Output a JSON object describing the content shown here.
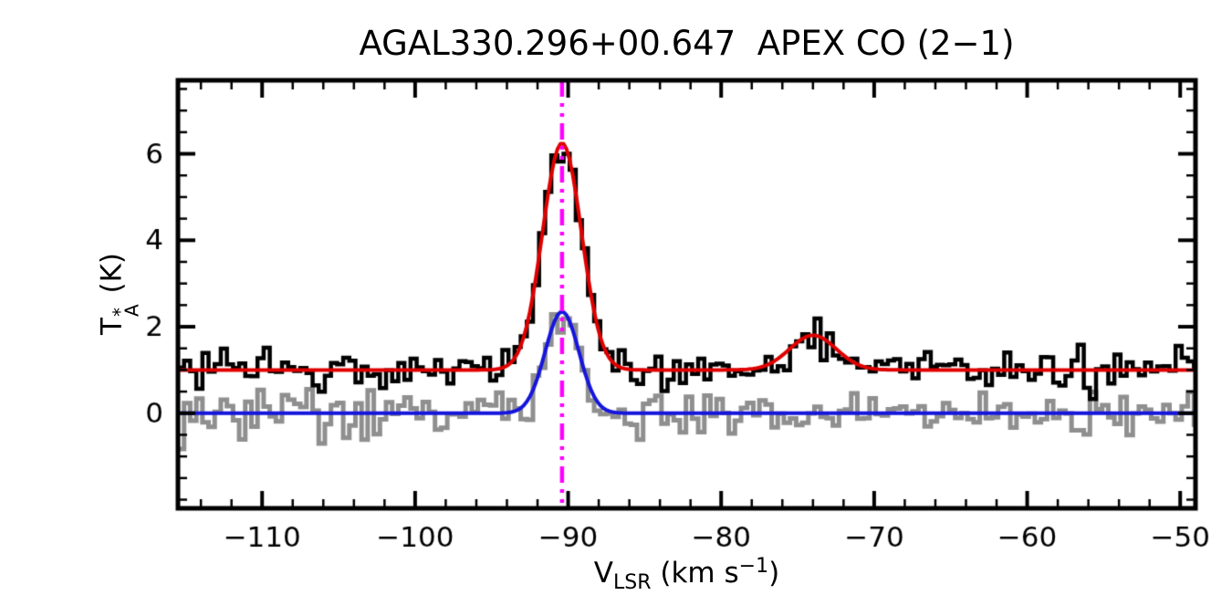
{
  "chart_data": {
    "type": "line",
    "title": "AGAL330.296+00.647  APEX CO (2−1)",
    "xlabel": {
      "base": "V",
      "sub": "LSR",
      "unit_pre": " (km s",
      "sup": "−1",
      "unit_post": ")"
    },
    "ylabel": {
      "base": "T",
      "sup": "*",
      "sub": "A",
      "unit": " (K)"
    },
    "xlim": [
      -115.5,
      -49.0
    ],
    "ylim": [
      -2.2,
      7.7
    ],
    "x_major_ticks": [
      -110,
      -100,
      -90,
      -80,
      -70,
      -60,
      -50
    ],
    "x_minor_step": 2,
    "y_major_ticks": [
      0,
      2,
      4,
      6
    ],
    "y_minor_step": 0.5,
    "grid": false,
    "legend": "none",
    "channel_width": 0.4,
    "series": [
      {
        "name": "observed-co-spectrum",
        "style": "histogram",
        "color": "#000000",
        "baseline": 1.0,
        "noise_rms": 0.22,
        "seed": 20240117,
        "components": [
          {
            "center": -90.4,
            "amplitude": 5.25,
            "fwhm": 3.0
          },
          {
            "center": -74.0,
            "amplitude": 0.8,
            "fwhm": 3.6
          }
        ]
      },
      {
        "name": "reference-offset-spectrum",
        "style": "histogram",
        "color": "#8f8f8f",
        "baseline": 0.0,
        "noise_rms": 0.27,
        "seed": 987654,
        "components": [
          {
            "center": -90.4,
            "amplitude": 2.4,
            "fwhm": 2.6
          }
        ]
      },
      {
        "name": "gaussian-fit-observed",
        "style": "smooth",
        "color": "#e00000",
        "baseline": 1.0,
        "noise_rms": 0,
        "seed": 0,
        "components": [
          {
            "center": -90.4,
            "amplitude": 5.25,
            "fwhm": 3.0
          },
          {
            "center": -74.0,
            "amplitude": 0.8,
            "fwhm": 3.6
          }
        ]
      },
      {
        "name": "gaussian-fit-reference",
        "style": "smooth",
        "color": "#1515dd",
        "baseline": 0.0,
        "noise_rms": 0,
        "seed": 0,
        "components": [
          {
            "center": -90.4,
            "amplitude": 2.35,
            "fwhm": 2.6
          }
        ]
      }
    ],
    "marker_line": {
      "x": -90.4,
      "color": "#ff00ff",
      "style": "dash-dot"
    }
  }
}
